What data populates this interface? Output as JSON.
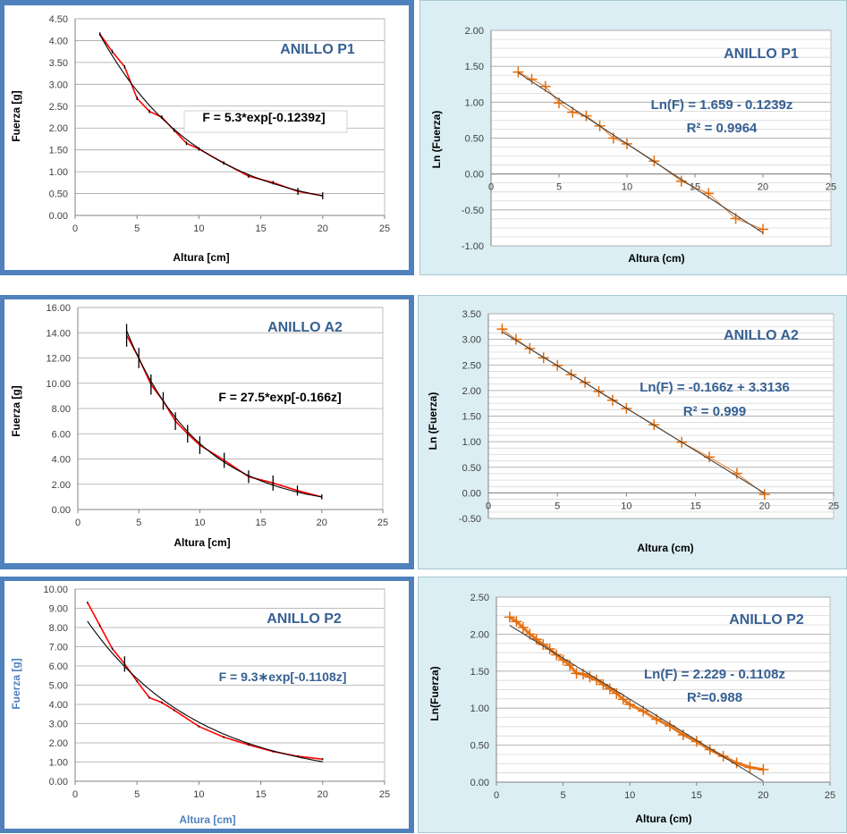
{
  "chart_data": [
    {
      "type": "line",
      "title": "ANILLO P1",
      "xlabel": "Altura  [cm]",
      "ylabel": "Fuerza  [g]",
      "xlim": [
        0,
        25
      ],
      "ylim": [
        0,
        4.5
      ],
      "xticks": [
        "0",
        "5",
        "10",
        "15",
        "20",
        "25"
      ],
      "yticks": [
        "0.00",
        "0.50",
        "1.00",
        "1.50",
        "2.00",
        "2.50",
        "3.00",
        "3.50",
        "4.00",
        "4.50"
      ],
      "annotation": "F = 5.3*exp[-0.1239z]",
      "grid": true,
      "series": [
        {
          "kind": "data",
          "color": "#ff0000",
          "x": [
            2,
            3,
            4,
            5,
            6,
            7,
            8,
            9,
            10,
            12,
            14,
            16,
            18,
            20
          ],
          "y": [
            4.15,
            3.75,
            3.4,
            2.68,
            2.38,
            2.25,
            1.95,
            1.65,
            1.52,
            1.2,
            0.9,
            0.75,
            0.55,
            0.45
          ],
          "error": [
            0.04,
            0.04,
            0.04,
            0.04,
            0.04,
            0.04,
            0.04,
            0.04,
            0.04,
            0.04,
            0.04,
            0.04,
            0.08,
            0.08
          ]
        },
        {
          "kind": "fit",
          "color": "#000000",
          "a": 5.3,
          "b": -0.1239,
          "x": [
            2,
            20
          ]
        }
      ]
    },
    {
      "type": "scatter",
      "title": "ANILLO P1",
      "xlabel": "Altura (cm)",
      "ylabel": "Ln (Fuerza)",
      "xlim": [
        0,
        25
      ],
      "ylim": [
        -1,
        2
      ],
      "xticks": [
        "0",
        "5",
        "10",
        "15",
        "20",
        "25"
      ],
      "yticks": [
        "-1.00",
        "-0.50",
        "0.00",
        "0.50",
        "1.00",
        "1.50",
        "2.00"
      ],
      "annotation": [
        "Ln(F) = 1.659 - 0.1239z",
        "R² = 0.9964"
      ],
      "grid": true,
      "series": [
        {
          "kind": "data",
          "color": "#e46c0a",
          "x": [
            2,
            3,
            4,
            5,
            6,
            7,
            8,
            9,
            10,
            12,
            14,
            16,
            18,
            20
          ],
          "y": [
            1.42,
            1.32,
            1.22,
            0.99,
            0.86,
            0.81,
            0.67,
            0.5,
            0.42,
            0.18,
            -0.1,
            -0.27,
            -0.62,
            -0.77
          ]
        },
        {
          "kind": "line",
          "color": "#404040",
          "x": [
            2,
            20
          ],
          "y": [
            1.411,
            -0.819
          ]
        }
      ]
    },
    {
      "type": "line",
      "title": "ANILLO A2",
      "xlabel": "Altura  [cm]",
      "ylabel": "Fuerza  [g]",
      "xlim": [
        0,
        25
      ],
      "ylim": [
        0,
        16
      ],
      "xticks": [
        "0",
        "5",
        "10",
        "15",
        "20",
        "25"
      ],
      "yticks": [
        "0.00",
        "2.00",
        "4.00",
        "6.00",
        "8.00",
        "10.00",
        "12.00",
        "14.00",
        "16.00"
      ],
      "annotation": "F = 27.5*exp[-0.166z]",
      "grid": true,
      "series": [
        {
          "kind": "data",
          "color": "#ff0000",
          "x": [
            4,
            5,
            6,
            7,
            8,
            9,
            10,
            12,
            14,
            16,
            18,
            20
          ],
          "y": [
            13.8,
            12.0,
            9.9,
            8.6,
            7.0,
            6.0,
            5.1,
            3.9,
            2.6,
            2.1,
            1.5,
            1.0
          ],
          "error": [
            0.9,
            0.8,
            0.8,
            0.7,
            0.7,
            0.7,
            0.7,
            0.6,
            0.5,
            0.6,
            0.4,
            0.2
          ]
        },
        {
          "kind": "fit",
          "color": "#000000",
          "a": 27.5,
          "b": -0.166,
          "x": [
            4,
            20
          ]
        }
      ]
    },
    {
      "type": "scatter",
      "title": "ANILLO A2",
      "xlabel": "Altura  (cm)",
      "ylabel": "Ln  (Fuerza)",
      "xlim": [
        0,
        25
      ],
      "ylim": [
        -0.5,
        3.5
      ],
      "xticks": [
        "0",
        "5",
        "10",
        "15",
        "20",
        "25"
      ],
      "yticks": [
        "-0.50",
        "0.00",
        "0.50",
        "1.00",
        "1.50",
        "2.00",
        "2.50",
        "3.00",
        "3.50"
      ],
      "annotation": [
        "Ln(F) = -0.166z + 3.3136",
        "R² = 0.999"
      ],
      "grid": true,
      "series": [
        {
          "kind": "data",
          "color": "#e46c0a",
          "x": [
            1,
            2,
            3,
            4,
            5,
            6,
            7,
            8,
            9,
            10,
            12,
            14,
            16,
            18,
            20
          ],
          "y": [
            3.2,
            3.0,
            2.82,
            2.64,
            2.49,
            2.31,
            2.16,
            1.98,
            1.81,
            1.65,
            1.33,
            0.99,
            0.7,
            0.38,
            -0.03
          ]
        },
        {
          "kind": "line",
          "color": "#404040",
          "x": [
            1,
            20
          ],
          "y": [
            3.148,
            -0.006
          ]
        }
      ]
    },
    {
      "type": "line",
      "title": "ANILLO P2",
      "xlabel": "Altura  [cm]",
      "ylabel": "Fuerza  [g]",
      "xlim": [
        0,
        25
      ],
      "ylim": [
        0,
        10
      ],
      "xticks": [
        "0",
        "5",
        "10",
        "15",
        "20",
        "25"
      ],
      "yticks": [
        "0.00",
        "1.00",
        "2.00",
        "3.00",
        "4.00",
        "5.00",
        "6.00",
        "7.00",
        "8.00",
        "9.00",
        "10.00"
      ],
      "annotation": "F = 9.3∗exp[-0.1108z]",
      "grid": true,
      "series": [
        {
          "kind": "data",
          "color": "#ff0000",
          "x": [
            1,
            2,
            3,
            4,
            5,
            6,
            7,
            8,
            10,
            12,
            14,
            16,
            18,
            20
          ],
          "y": [
            9.3,
            8.1,
            6.9,
            6.1,
            5.2,
            4.35,
            4.1,
            3.7,
            2.85,
            2.3,
            1.9,
            1.55,
            1.3,
            1.15
          ],
          "error": [
            0.05,
            0.05,
            0.05,
            0.4,
            0.05,
            0.05,
            0.05,
            0.05,
            0.05,
            0.05,
            0.05,
            0.05,
            0.05,
            0.05
          ]
        },
        {
          "kind": "fit",
          "color": "#000000",
          "a": 9.3,
          "b": -0.1108,
          "x": [
            1,
            20
          ]
        }
      ]
    },
    {
      "type": "scatter",
      "title": "ANILLO P2",
      "xlabel": "Altura  (cm)",
      "ylabel": "Ln(Fuerza)",
      "xlim": [
        0,
        25
      ],
      "ylim": [
        0,
        2.5
      ],
      "xticks": [
        "0",
        "5",
        "10",
        "15",
        "20",
        "25"
      ],
      "yticks": [
        "0.00",
        "0.50",
        "1.00",
        "1.50",
        "2.00",
        "2.50"
      ],
      "annotation": [
        "Ln(F) = 2.229 - 0.1108z",
        "R²=0.988"
      ],
      "grid": true,
      "series": [
        {
          "kind": "data",
          "color": "#e46c0a",
          "x": [
            1,
            1.5,
            2,
            2.5,
            3,
            3.5,
            4,
            4.5,
            5,
            5.5,
            6,
            6.5,
            7,
            7.5,
            8,
            8.5,
            9,
            9.5,
            10,
            11,
            12,
            13,
            14,
            15,
            16,
            17,
            18,
            19,
            20
          ],
          "y": [
            2.23,
            2.17,
            2.09,
            2.0,
            1.93,
            1.86,
            1.8,
            1.72,
            1.65,
            1.58,
            1.47,
            1.46,
            1.42,
            1.38,
            1.32,
            1.26,
            1.2,
            1.12,
            1.05,
            0.96,
            0.85,
            0.76,
            0.64,
            0.55,
            0.44,
            0.35,
            0.26,
            0.2,
            0.17
          ],
          "thick": true
        },
        {
          "kind": "line",
          "color": "#404040",
          "x": [
            1,
            20
          ],
          "y": [
            2.118,
            0.013
          ]
        }
      ]
    }
  ],
  "colors": {
    "left_panel_bg": "#4f81bd",
    "right_panel_bg": "#daeef3",
    "title_color": "#366092",
    "annotation_right_color": "#1f4e79",
    "data_red": "#ff0000",
    "data_orange": "#e46c0a"
  }
}
